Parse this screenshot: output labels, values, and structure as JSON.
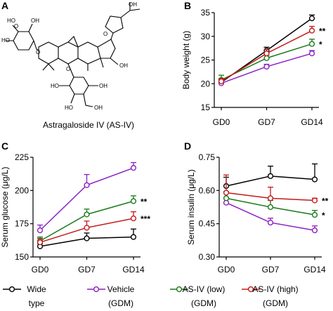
{
  "figure": {
    "panels": [
      {
        "letter": "A"
      },
      {
        "letter": "B"
      },
      {
        "letter": "C"
      },
      {
        "letter": "D"
      }
    ],
    "structure": {
      "caption": "Astragaloside IV (AS-IV)",
      "atom_labels": [
        {
          "text": "OH"
        },
        {
          "text": "O"
        },
        {
          "text": "OH"
        },
        {
          "text": "O"
        },
        {
          "text": "HO"
        },
        {
          "text": "O"
        },
        {
          "text": "HO"
        },
        {
          "text": "OH"
        },
        {
          "text": "O"
        },
        {
          "text": "HO"
        },
        {
          "text": "OH"
        },
        {
          "text": "HO"
        },
        {
          "text": "OH"
        }
      ]
    },
    "legend": [
      {
        "line1": "Wide",
        "line2": "type",
        "color": "#000000"
      },
      {
        "line1": "Vehicle",
        "line2": "(GDM)",
        "color": "#8b1fc4"
      },
      {
        "line1": "AS-IV (low)",
        "line2": "(GDM)",
        "color": "#1a7a1a"
      },
      {
        "line1": "AS-IV (high)",
        "line2": "(GDM)",
        "color": "#c41a1a"
      }
    ]
  },
  "chart_data": [
    {
      "panel": "B",
      "type": "line",
      "x": [
        "GD0",
        "GD7",
        "GD14"
      ],
      "ylabel": "Body weight (g)",
      "ylim": [
        15,
        35
      ],
      "yticks": [
        15,
        20,
        25,
        30,
        35
      ],
      "series": [
        {
          "color": "#000000",
          "values": [
            20.3,
            27.0,
            33.8
          ],
          "errors": [
            0.4,
            0.7,
            0.7
          ]
        },
        {
          "color": "#8b1fc4",
          "values": [
            20.1,
            23.6,
            26.4
          ],
          "errors": [
            0.4,
            0.5,
            0.6
          ]
        },
        {
          "color": "#1a7a1a",
          "values": [
            20.8,
            25.4,
            28.4
          ],
          "errors": [
            1.0,
            0.6,
            1.0
          ]
        },
        {
          "color": "#c41a1a",
          "values": [
            20.5,
            26.4,
            31.2
          ],
          "errors": [
            0.6,
            0.8,
            0.9
          ]
        }
      ],
      "significance": [
        {
          "series_index": 3,
          "text": "**"
        },
        {
          "series_index": 2,
          "text": "*"
        }
      ]
    },
    {
      "panel": "C",
      "type": "line",
      "x": [
        "GD0",
        "GD7",
        "GD14"
      ],
      "ylabel": "Serum glucose (μg/L)",
      "ylim": [
        150,
        225
      ],
      "yticks": [
        150,
        175,
        200,
        225
      ],
      "series": [
        {
          "color": "#000000",
          "values": [
            158,
            164,
            165
          ],
          "errors": [
            2,
            4,
            6
          ]
        },
        {
          "color": "#8b1fc4",
          "values": [
            170,
            204,
            217
          ],
          "errors": [
            4,
            8,
            4
          ]
        },
        {
          "color": "#1a7a1a",
          "values": [
            162,
            182,
            192
          ],
          "errors": [
            3,
            4,
            4
          ]
        },
        {
          "color": "#c41a1a",
          "values": [
            161,
            172,
            179
          ],
          "errors": [
            3,
            5,
            5
          ]
        }
      ],
      "significance": [
        {
          "series_index": 2,
          "text": "**"
        },
        {
          "series_index": 3,
          "text": "***"
        }
      ]
    },
    {
      "panel": "D",
      "type": "line",
      "x": [
        "GD0",
        "GD7",
        "GD14"
      ],
      "ylabel": "Serum insulin (μg/L)",
      "ylim": [
        0.3,
        0.75
      ],
      "yticks": [
        0.3,
        0.45,
        0.6,
        0.75
      ],
      "series": [
        {
          "color": "#000000",
          "values": [
            0.62,
            0.665,
            0.65
          ],
          "errors": [
            0.04,
            0.045,
            0.07
          ]
        },
        {
          "color": "#8b1fc4",
          "values": [
            0.545,
            0.455,
            0.42
          ],
          "errors": [
            0.02,
            0.02,
            0.02
          ]
        },
        {
          "color": "#1a7a1a",
          "values": [
            0.565,
            0.525,
            0.49
          ],
          "errors": [
            0.03,
            0.03,
            0.02
          ]
        },
        {
          "color": "#c41a1a",
          "values": [
            0.59,
            0.565,
            0.555
          ],
          "errors": [
            0.08,
            0.05,
            0.01
          ]
        }
      ],
      "significance": [
        {
          "series_index": 3,
          "text": "**"
        },
        {
          "series_index": 2,
          "text": "*"
        }
      ]
    }
  ]
}
